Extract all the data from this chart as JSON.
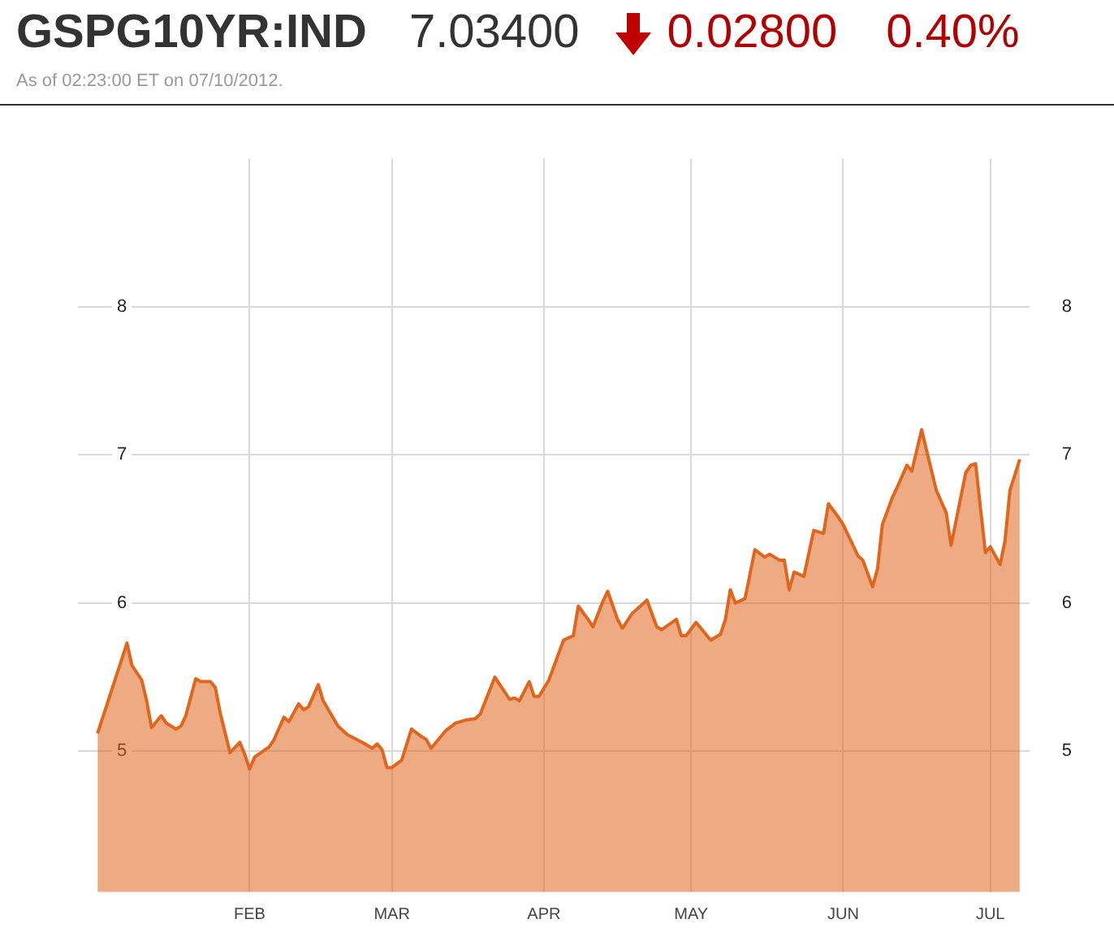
{
  "chart_data": {
    "type": "area",
    "title": "GSPG10YR:IND",
    "subtitle": "As of 02:23:00 ET on 07/10/2012.",
    "annotations": [
      "7.03400",
      "0.02800",
      "0.40%"
    ],
    "x": [
      "2012-01-01",
      "2012-01-07",
      "2012-01-08",
      "2012-01-10",
      "2012-01-11",
      "2012-01-12",
      "2012-01-14",
      "2012-01-15",
      "2012-01-17",
      "2012-01-18",
      "2012-01-19",
      "2012-01-21",
      "2012-01-22",
      "2012-01-24",
      "2012-01-25",
      "2012-01-26",
      "2012-01-28",
      "2012-01-30",
      "2012-01-31",
      "2012-02-01",
      "2012-02-02",
      "2012-02-05",
      "2012-02-06",
      "2012-02-08",
      "2012-02-09",
      "2012-02-11",
      "2012-02-12",
      "2012-02-13",
      "2012-02-15",
      "2012-02-16",
      "2012-02-19",
      "2012-02-21",
      "2012-02-24",
      "2012-02-26",
      "2012-02-27",
      "2012-02-28",
      "2012-02-29",
      "2012-03-01",
      "2012-03-03",
      "2012-03-05",
      "2012-03-07",
      "2012-03-08",
      "2012-03-09",
      "2012-03-12",
      "2012-03-14",
      "2012-03-16",
      "2012-03-18",
      "2012-03-19",
      "2012-03-22",
      "2012-03-24",
      "2012-03-25",
      "2012-03-26",
      "2012-03-27",
      "2012-03-29",
      "2012-03-30",
      "2012-03-31",
      "2012-04-02",
      "2012-04-04",
      "2012-04-05",
      "2012-04-07",
      "2012-04-08",
      "2012-04-10",
      "2012-04-11",
      "2012-04-13",
      "2012-04-14",
      "2012-04-16",
      "2012-04-17",
      "2012-04-19",
      "2012-04-22",
      "2012-04-24",
      "2012-04-25",
      "2012-04-28",
      "2012-04-29",
      "2012-04-30",
      "2012-05-02",
      "2012-05-05",
      "2012-05-07",
      "2012-05-08",
      "2012-05-09",
      "2012-05-10",
      "2012-05-12",
      "2012-05-14",
      "2012-05-16",
      "2012-05-17",
      "2012-05-19",
      "2012-05-20",
      "2012-05-21",
      "2012-05-22",
      "2012-05-24",
      "2012-05-26",
      "2012-05-28",
      "2012-05-29",
      "2012-05-31",
      "2012-06-01",
      "2012-06-04",
      "2012-06-05",
      "2012-06-07",
      "2012-06-08",
      "2012-06-09",
      "2012-06-11",
      "2012-06-12",
      "2012-06-14",
      "2012-06-15",
      "2012-06-17",
      "2012-06-18",
      "2012-06-20",
      "2012-06-22",
      "2012-06-23",
      "2012-06-26",
      "2012-06-27",
      "2012-06-28",
      "2012-06-30",
      "2012-07-01",
      "2012-07-03",
      "2012-07-04",
      "2012-07-05",
      "2012-07-07"
    ],
    "series": [
      {
        "color": "#e0661e",
        "values": [
          5.12,
          5.73,
          5.58,
          5.48,
          5.34,
          5.16,
          5.24,
          5.19,
          5.15,
          5.17,
          5.24,
          5.49,
          5.47,
          5.47,
          5.43,
          5.26,
          4.99,
          5.06,
          4.98,
          4.88,
          4.96,
          5.03,
          5.08,
          5.23,
          5.2,
          5.32,
          5.28,
          5.3,
          5.45,
          5.34,
          5.17,
          5.11,
          5.06,
          5.02,
          5.05,
          5.01,
          4.89,
          4.89,
          4.94,
          5.15,
          5.1,
          5.08,
          5.02,
          5.14,
          5.19,
          5.21,
          5.22,
          5.25,
          5.5,
          5.4,
          5.35,
          5.36,
          5.34,
          5.47,
          5.37,
          5.37,
          5.48,
          5.66,
          5.75,
          5.78,
          5.98,
          5.89,
          5.84,
          6.01,
          6.08,
          5.89,
          5.83,
          5.93,
          6.02,
          5.84,
          5.82,
          5.89,
          5.78,
          5.78,
          5.87,
          5.75,
          5.79,
          5.89,
          6.09,
          6.0,
          6.03,
          6.36,
          6.31,
          6.33,
          6.29,
          6.29,
          6.09,
          6.21,
          6.18,
          6.49,
          6.47,
          6.67,
          6.58,
          6.53,
          6.32,
          6.29,
          6.11,
          6.23,
          6.53,
          6.71,
          6.78,
          6.93,
          6.89,
          7.17,
          7.03,
          6.76,
          6.61,
          6.39,
          6.88,
          6.93,
          6.94,
          6.34,
          6.38,
          6.26,
          6.42,
          6.76,
          6.97
        ]
      }
    ],
    "xlim": [
      "2011-12-28",
      "2012-07-09"
    ],
    "xticks": [
      {
        "value": "2012-02-01",
        "label": "FEB"
      },
      {
        "value": "2012-03-01",
        "label": "MAR"
      },
      {
        "value": "2012-04-01",
        "label": "APR"
      },
      {
        "value": "2012-05-01",
        "label": "MAY"
      },
      {
        "value": "2012-06-01",
        "label": "JUN"
      },
      {
        "value": "2012-07-01",
        "label": "JUL"
      }
    ],
    "ylim": [
      4.05,
      9
    ],
    "yticks": [
      5,
      6,
      7,
      8
    ],
    "y2lim": [
      4.05,
      9
    ],
    "y2ticks": [
      5,
      6,
      7,
      8
    ],
    "grid": true,
    "legend": false
  }
}
